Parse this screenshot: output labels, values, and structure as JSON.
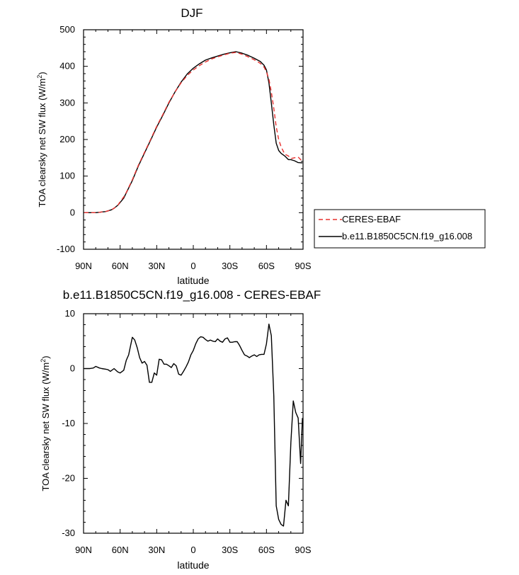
{
  "chart_data": [
    {
      "type": "line",
      "title": "DJF",
      "xlabel": "latitude",
      "ylabel": "TOA clearsky net SW flux (W/m",
      "ylabel_sup": "2",
      "ylabel_close": ")",
      "xlim": [
        90,
        -90
      ],
      "ylim": [
        -100,
        500
      ],
      "x_ticks": [
        90,
        60,
        30,
        0,
        -30,
        -60,
        -90
      ],
      "x_tick_labels": [
        "90N",
        "60N",
        "30N",
        "0",
        "30S",
        "60S",
        "90S"
      ],
      "y_ticks": [
        -100,
        0,
        100,
        200,
        300,
        400,
        500
      ],
      "y_tick_labels": [
        "-100",
        "0",
        "100",
        "200",
        "300",
        "400",
        "500"
      ],
      "legend_position": "right",
      "series": [
        {
          "name": "CERES-EBAF",
          "color": "#e8312f",
          "dash": "dashed",
          "x": [
            89.5,
            85,
            80,
            77,
            75,
            72,
            70,
            67,
            65,
            62,
            60,
            57,
            55,
            50,
            45,
            40,
            35,
            30,
            25,
            20,
            15,
            10,
            5,
            0,
            -5,
            -10,
            -15,
            -20,
            -25,
            -30,
            -35,
            -40,
            -45,
            -50,
            -55,
            -58,
            -60,
            -62,
            -64,
            -66,
            -68,
            -70,
            -72,
            -75,
            -78,
            -80,
            -83,
            -86,
            -89.5
          ],
          "y": [
            0,
            0,
            0,
            1,
            2,
            3,
            5,
            8,
            12,
            20,
            30,
            43,
            55,
            90,
            130,
            165,
            200,
            236,
            268,
            302,
            330,
            355,
            375,
            390,
            402,
            412,
            420,
            426,
            431,
            436,
            438,
            433,
            426,
            418,
            408,
            398,
            385,
            365,
            330,
            285,
            235,
            200,
            180,
            160,
            155,
            148,
            150,
            152,
            140
          ]
        },
        {
          "name": "b.e11.B1850C5CN.f19_g16.008",
          "color": "#000000",
          "dash": "solid",
          "x": [
            89.5,
            85,
            80,
            77,
            75,
            72,
            70,
            67,
            65,
            62,
            60,
            57,
            55,
            50,
            45,
            40,
            35,
            30,
            25,
            20,
            15,
            10,
            5,
            0,
            -5,
            -10,
            -15,
            -20,
            -25,
            -30,
            -35,
            -40,
            -45,
            -50,
            -55,
            -58,
            -60,
            -62,
            -64,
            -66,
            -68,
            -70,
            -72,
            -75,
            -78,
            -80,
            -83,
            -86,
            -89.5
          ],
          "y": [
            0,
            0,
            0,
            1,
            2,
            3,
            5,
            8,
            12,
            20,
            28,
            40,
            54,
            88,
            128,
            163,
            198,
            234,
            266,
            300,
            330,
            357,
            379,
            395,
            407,
            417,
            423,
            428,
            433,
            437,
            440,
            436,
            430,
            422,
            413,
            403,
            390,
            355,
            300,
            240,
            190,
            170,
            162,
            155,
            145,
            145,
            142,
            137,
            136
          ]
        }
      ]
    },
    {
      "type": "line",
      "title": "b.e11.B1850C5CN.f19_g16.008 - CERES-EBAF",
      "xlabel": "latitude",
      "ylabel": "TOA clearsky net SW flux (W/m",
      "ylabel_sup": "2",
      "ylabel_close": ")",
      "xlim": [
        90,
        -90
      ],
      "ylim": [
        -30,
        10
      ],
      "x_ticks": [
        90,
        60,
        30,
        0,
        -30,
        -60,
        -90
      ],
      "x_tick_labels": [
        "90N",
        "60N",
        "30N",
        "0",
        "30S",
        "60S",
        "90S"
      ],
      "y_ticks": [
        -30,
        -20,
        -10,
        0,
        10
      ],
      "y_tick_labels": [
        "-30",
        "-20",
        "-10",
        "0",
        "10"
      ],
      "series": [
        {
          "name": "b.e11.B1850C5CN.f19_g16.008 - CERES-EBAF",
          "color": "#000000",
          "dash": "solid",
          "x": [
            89.5,
            85,
            82,
            80,
            77,
            75,
            72,
            70,
            68,
            65,
            62,
            60,
            57,
            55,
            53,
            50,
            48,
            46,
            44,
            42,
            40,
            38,
            36,
            34,
            32,
            30,
            28,
            26,
            24,
            22,
            20,
            18,
            16,
            14,
            12,
            10,
            8,
            6,
            4,
            2,
            0,
            -2,
            -4,
            -6,
            -8,
            -10,
            -12,
            -14,
            -16,
            -18,
            -20,
            -22,
            -24,
            -26,
            -28,
            -30,
            -32,
            -34,
            -36,
            -38,
            -40,
            -42,
            -44,
            -46,
            -48,
            -50,
            -52,
            -54,
            -56,
            -58,
            -60,
            -62,
            -64,
            -66,
            -68,
            -70,
            -72,
            -74,
            -76,
            -78,
            -80,
            -82,
            -84,
            -86,
            -88,
            -89.5
          ],
          "y": [
            0,
            0,
            0.1,
            0.4,
            0.1,
            0,
            -0.1,
            -0.2,
            -0.5,
            0,
            -0.6,
            -0.8,
            -0.3,
            1.5,
            2.5,
            5.7,
            5.2,
            3.8,
            2.0,
            1.0,
            1.3,
            0.6,
            -2.5,
            -2.5,
            -0.8,
            -1.2,
            1.7,
            1.6,
            0.8,
            0.8,
            0.5,
            0.2,
            0.9,
            0.5,
            -1.0,
            -1.2,
            -0.5,
            0.3,
            1.2,
            2.5,
            3.3,
            4.5,
            5.4,
            5.8,
            5.7,
            5.3,
            5.0,
            5.2,
            5.0,
            4.9,
            5.4,
            5.0,
            4.8,
            5.4,
            5.6,
            4.8,
            4.8,
            4.9,
            4.9,
            4.2,
            3.3,
            2.5,
            2.3,
            2.0,
            2.3,
            2.5,
            2.2,
            2.5,
            2.6,
            2.6,
            4.5,
            8.1,
            6.0,
            -5,
            -25,
            -27.5,
            -28.4,
            -28.7,
            -24,
            -25,
            -13.5,
            -5.9,
            -8.0,
            -9.0,
            -17.3,
            -9.0
          ]
        }
      ]
    }
  ]
}
